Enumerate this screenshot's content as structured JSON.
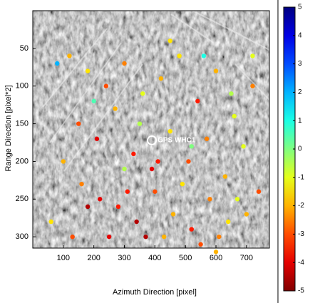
{
  "chart_data": {
    "type": "scatter",
    "xlabel": "Azimuth Direction [pixel]",
    "ylabel": "Range Direction [pixel*2]",
    "xlim": [
      0,
      775
    ],
    "ylim": [
      0,
      315
    ],
    "invert_y": true,
    "xticks": [
      100,
      200,
      300,
      400,
      500,
      600,
      700
    ],
    "yticks": [
      50,
      100,
      150,
      200,
      250,
      300
    ],
    "x": [
      120,
      180,
      240,
      300,
      360,
      420,
      480,
      540,
      600,
      660,
      720,
      150,
      210,
      270,
      330,
      390,
      450,
      510,
      570,
      630,
      690,
      740,
      100,
      160,
      220,
      280,
      340,
      400,
      460,
      520,
      580,
      640,
      700,
      60,
      130,
      250,
      310,
      370,
      430,
      490,
      550,
      610,
      670,
      200,
      350,
      450,
      560,
      650,
      80,
      300,
      520,
      720,
      410,
      180,
      600
    ],
    "y": [
      60,
      80,
      100,
      70,
      110,
      90,
      60,
      120,
      80,
      140,
      100,
      150,
      170,
      130,
      190,
      210,
      160,
      200,
      170,
      220,
      180,
      240,
      200,
      230,
      250,
      260,
      280,
      240,
      270,
      290,
      250,
      280,
      270,
      280,
      300,
      300,
      240,
      300,
      300,
      230,
      310,
      300,
      250,
      120,
      150,
      40,
      60,
      110,
      70,
      210,
      180,
      60,
      200,
      260,
      320
    ],
    "values": [
      -2,
      -1.5,
      -3,
      -2.5,
      -1,
      -2,
      -1.5,
      -3.5,
      -2,
      -1,
      -2.5,
      -3,
      -4,
      -2,
      -3.5,
      -4,
      -1.5,
      -3,
      -2.5,
      -2,
      -1,
      -3,
      -2,
      -2.5,
      -4,
      -3.5,
      -4.5,
      -3,
      -2,
      -3.5,
      -2.5,
      -1.5,
      -2,
      -1.5,
      -3,
      -4,
      -3.5,
      -4.5,
      -2,
      -1.5,
      -3,
      -2.5,
      -1,
      0.5,
      -0.5,
      -1.5,
      1,
      -0.5,
      2,
      -0.5,
      0,
      -1,
      -3.5,
      -4.5,
      -2
    ],
    "annotation": {
      "text": "GPS WHC1",
      "x": 390,
      "y": 172
    },
    "colorbar": {
      "clim": [
        -5,
        5
      ],
      "ticks": [
        -5,
        -4,
        -3,
        -2,
        -1,
        0,
        1,
        2,
        3,
        4,
        5
      ],
      "colormap": "jet_r"
    }
  }
}
